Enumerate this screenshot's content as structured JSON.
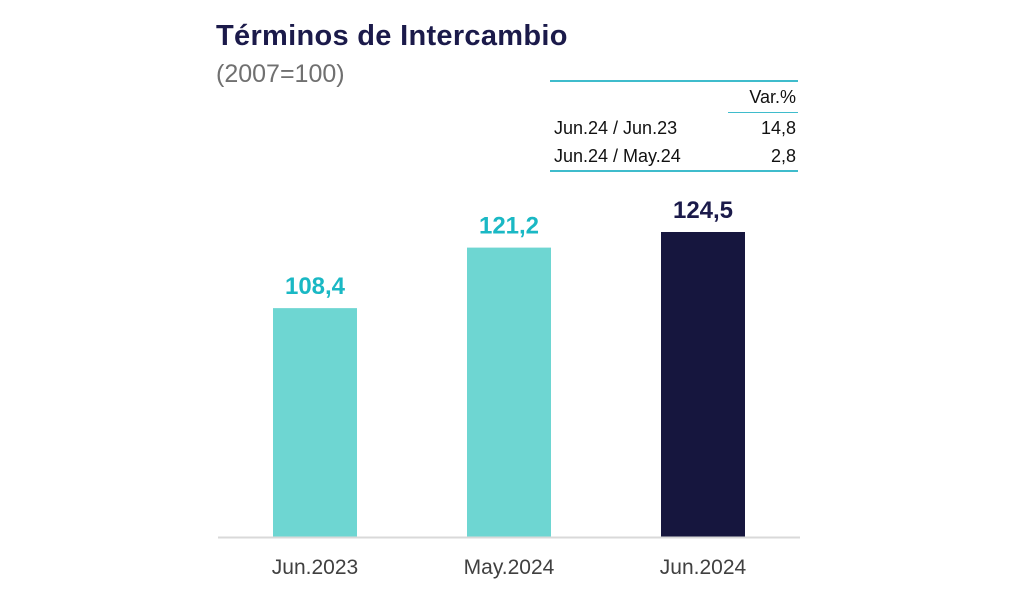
{
  "title": "Términos de Intercambio",
  "subtitle": "(2007=100)",
  "variation_table": {
    "header": "Var.%",
    "rows": [
      {
        "label": "Jun.24 / Jun.23",
        "value": "14,8"
      },
      {
        "label": "Jun.24 / May.24",
        "value": "2,8"
      }
    ]
  },
  "chart_data": {
    "type": "bar",
    "categories": [
      "Jun.2023",
      "May.2024",
      "Jun.2024"
    ],
    "values": [
      108.4,
      121.2,
      124.5
    ],
    "value_labels": [
      "108,4",
      "121,2",
      "124,5"
    ],
    "bar_colors": [
      "#6ed6d2",
      "#6ed6d2",
      "#16163e"
    ],
    "label_colors": [
      "#1ab8c4",
      "#1ab8c4",
      "#1b1a4a"
    ],
    "title": "Términos de Intercambio",
    "subtitle": "(2007=100)",
    "xlabel": "",
    "ylabel": "",
    "ylim": [
      60,
      130
    ],
    "grid": false,
    "legend": "none"
  },
  "colors": {
    "title": "#1b1a4a",
    "subtitle": "#707070",
    "accent": "#3fbccc",
    "axis": "#d9d9d9"
  }
}
